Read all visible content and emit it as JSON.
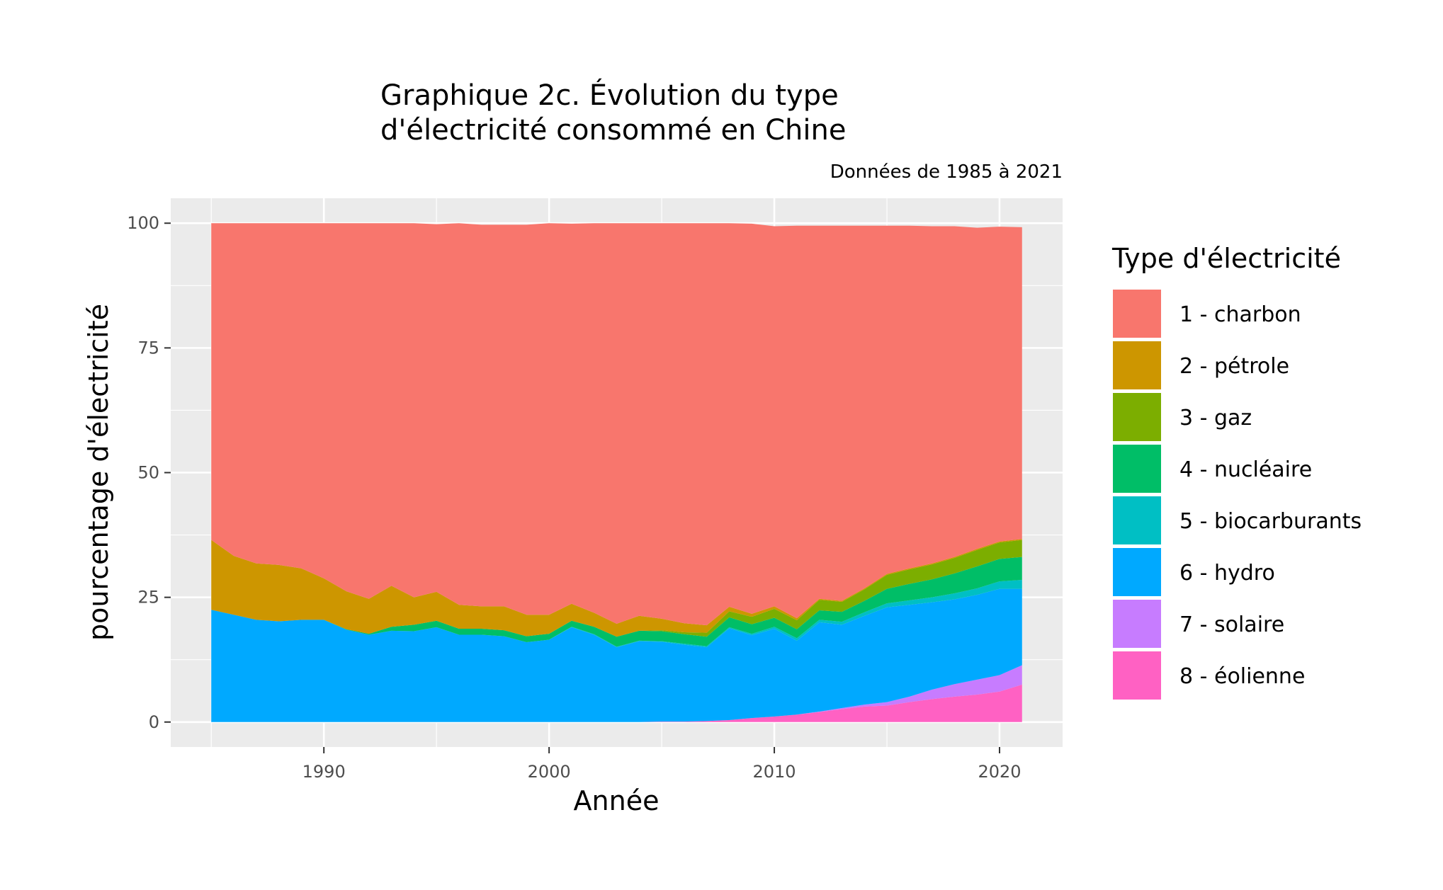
{
  "chart_data": {
    "type": "area",
    "stacked": true,
    "title_line1": "Graphique 2c. Évolution du type",
    "title_line2": "d'électricité consommé en Chine",
    "subtitle": "Données de 1985 à 2021",
    "xlabel": "Année",
    "ylabel": "pourcentage d'électricité",
    "xlim": [
      1983.2,
      2022.8
    ],
    "ylim": [
      -5,
      105
    ],
    "x_ticks": [
      1990,
      2000,
      2010,
      2020
    ],
    "x_minor_ticks": [
      1985,
      1995,
      2005,
      2015
    ],
    "y_ticks": [
      0,
      25,
      50,
      75,
      100
    ],
    "y_tick_labels": [
      "0",
      "25",
      "50",
      "75",
      "100"
    ],
    "grid": true,
    "legend_position": "right",
    "legend_title": "Type d'électricité",
    "years": [
      1985,
      1986,
      1987,
      1988,
      1989,
      1990,
      1991,
      1992,
      1993,
      1994,
      1995,
      1996,
      1997,
      1998,
      1999,
      2000,
      2001,
      2002,
      2003,
      2004,
      2005,
      2006,
      2007,
      2008,
      2009,
      2010,
      2011,
      2012,
      2013,
      2014,
      2015,
      2016,
      2017,
      2018,
      2019,
      2020,
      2021
    ],
    "series": [
      {
        "name": "8 - éolienne",
        "color": "#FF61C3",
        "values": [
          0,
          0,
          0,
          0,
          0,
          0,
          0,
          0,
          0,
          0,
          0,
          0,
          0,
          0,
          0,
          0,
          0,
          0,
          0,
          0,
          0.1,
          0.1,
          0.2,
          0.4,
          0.8,
          1.1,
          1.5,
          2.0,
          2.6,
          3.1,
          3.3,
          4.0,
          4.6,
          5.1,
          5.5,
          6.1,
          7.5
        ]
      },
      {
        "name": "7 - solaire",
        "color": "#C77CFF",
        "values": [
          0,
          0,
          0,
          0,
          0,
          0,
          0,
          0,
          0,
          0,
          0,
          0,
          0,
          0,
          0,
          0,
          0,
          0,
          0,
          0,
          0,
          0,
          0,
          0,
          0,
          0,
          0,
          0.1,
          0.2,
          0.4,
          0.7,
          1.1,
          1.9,
          2.5,
          3.0,
          3.3,
          3.9
        ]
      },
      {
        "name": "6 - hydro",
        "color": "#00A9FF",
        "values": [
          22.5,
          21.5,
          20.5,
          20.2,
          20.5,
          20.5,
          18.5,
          17.5,
          18.3,
          18.2,
          19.0,
          17.5,
          17.5,
          17.2,
          16.0,
          16.5,
          19.0,
          17.5,
          15.0,
          16.2,
          16.0,
          15.4,
          14.8,
          18.4,
          16.6,
          17.6,
          14.8,
          17.9,
          16.7,
          17.8,
          19.0,
          18.4,
          17.5,
          17.0,
          17.0,
          17.3,
          15.3
        ]
      },
      {
        "name": "5 - biocarburants",
        "color": "#00BFC4",
        "values": [
          0,
          0,
          0,
          0,
          0,
          0,
          0,
          0,
          0,
          0,
          0,
          0,
          0,
          0,
          0,
          0,
          0.1,
          0.1,
          0.1,
          0.1,
          0.1,
          0.2,
          0.2,
          0.2,
          0.3,
          0.4,
          0.5,
          0.5,
          0.6,
          0.7,
          0.8,
          0.9,
          1.0,
          1.2,
          1.3,
          1.5,
          1.8
        ]
      },
      {
        "name": "4 - nucléaire",
        "color": "#00BE67",
        "values": [
          0,
          0,
          0,
          0,
          0,
          0,
          0.1,
          0.2,
          0.8,
          1.3,
          1.3,
          1.2,
          1.2,
          1.2,
          1.2,
          1.2,
          1.2,
          1.5,
          2.0,
          2.0,
          2.0,
          1.9,
          1.9,
          2.0,
          1.9,
          1.8,
          1.8,
          1.9,
          2.0,
          2.3,
          2.9,
          3.3,
          3.6,
          4.0,
          4.4,
          4.5,
          4.6
        ]
      },
      {
        "name": "3 - gaz",
        "color": "#7CAE00",
        "values": [
          0,
          0,
          0,
          0,
          0,
          0,
          0,
          0,
          0,
          0,
          0,
          0,
          0,
          0,
          0,
          0,
          0,
          0,
          0,
          0,
          0.2,
          0.4,
          0.8,
          1.2,
          1.5,
          1.8,
          1.8,
          2.1,
          2.0,
          2.3,
          2.8,
          2.9,
          3.0,
          3.1,
          3.3,
          3.3,
          3.4
        ]
      },
      {
        "name": "2 - pétrole",
        "color": "#CD9600",
        "values": [
          14.0,
          11.8,
          11.3,
          11.3,
          10.3,
          8.3,
          7.6,
          7.0,
          8.2,
          5.5,
          5.8,
          4.8,
          4.5,
          4.8,
          4.3,
          3.8,
          3.4,
          2.8,
          2.6,
          3.0,
          2.3,
          1.8,
          1.5,
          0.9,
          0.6,
          0.5,
          0.4,
          0.2,
          0.2,
          0.2,
          0.2,
          0.2,
          0.2,
          0.2,
          0.2,
          0.2,
          0.2
        ]
      },
      {
        "name": "1 - charbon",
        "color": "#F8766D",
        "values": [
          63.5,
          66.7,
          68.2,
          68.5,
          69.2,
          71.2,
          73.8,
          75.3,
          72.7,
          75.0,
          73.7,
          76.5,
          76.5,
          76.5,
          78.2,
          78.5,
          76.2,
          78.1,
          80.3,
          78.7,
          79.3,
          80.2,
          80.6,
          76.9,
          78.2,
          76.2,
          78.7,
          74.8,
          75.2,
          72.7,
          69.8,
          68.7,
          67.6,
          66.3,
          64.4,
          63.1,
          62.5
        ]
      }
    ]
  }
}
